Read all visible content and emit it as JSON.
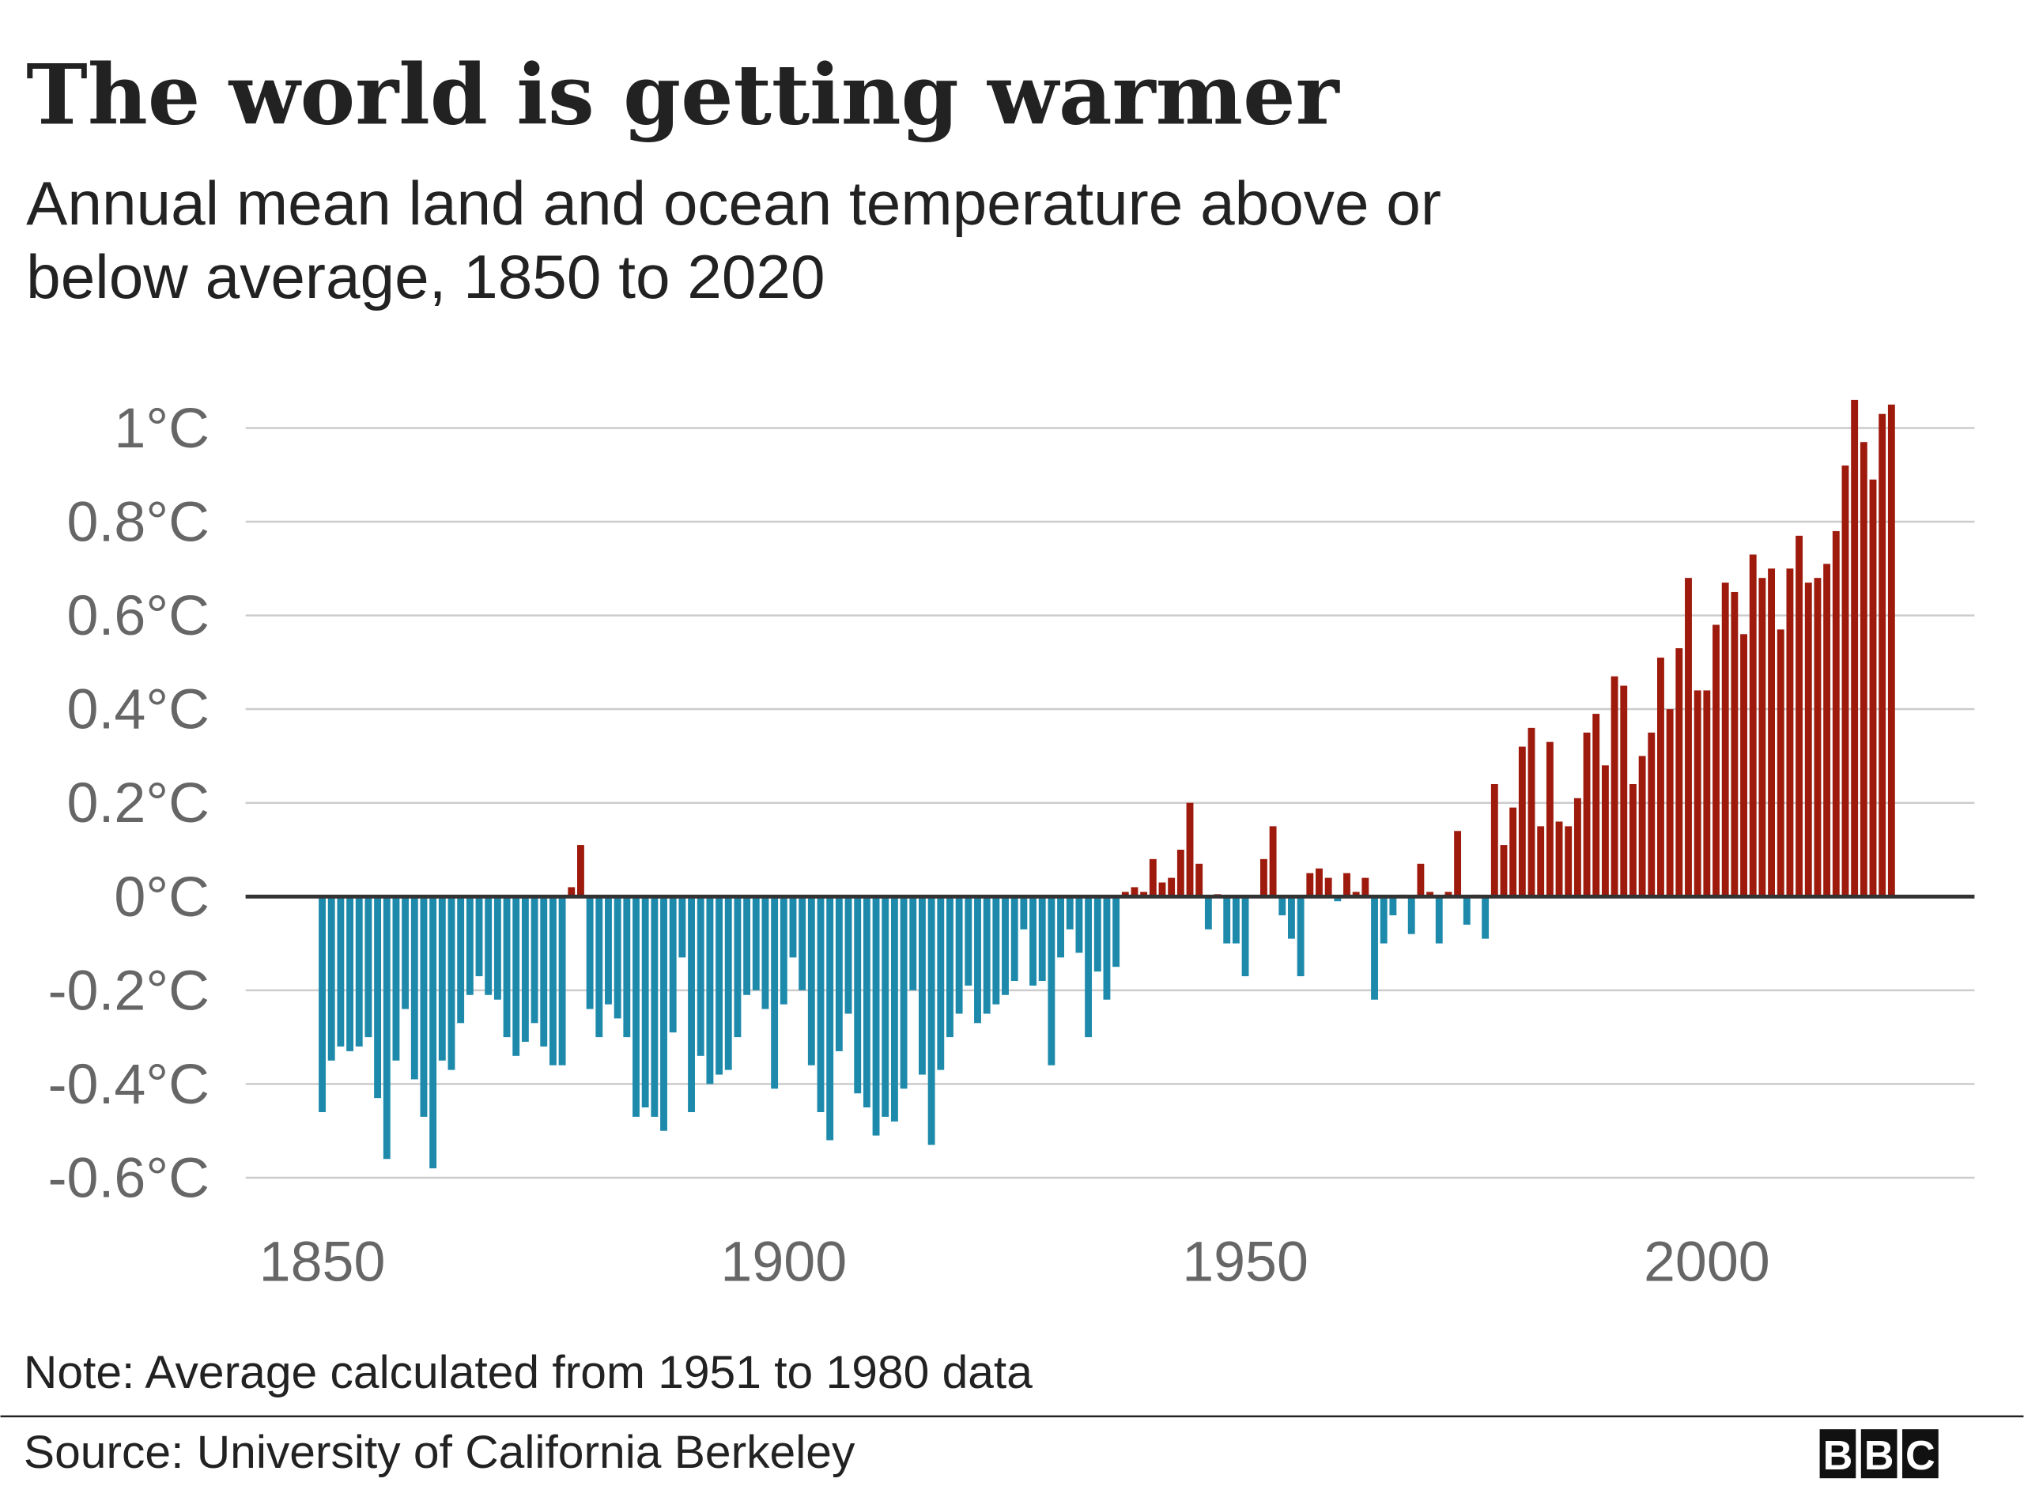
{
  "chart_data": {
    "type": "bar",
    "title": "The world is getting warmer",
    "subtitle": [
      "Annual mean land and ocean temperature above or",
      "below average, 1850 to 2020"
    ],
    "note": "Note: Average calculated from 1951 to 1980 data",
    "source": "Source: University of California Berkeley",
    "logo": [
      "B",
      "B",
      "C"
    ],
    "positive_color": "#9e1a0c",
    "negative_color": "#1d8aac",
    "grid": true,
    "xlim": [
      1841.7,
      2029
    ],
    "xticks": [
      1850,
      1900,
      1950,
      2000
    ],
    "ylim": [
      -0.6,
      1.06
    ],
    "yticks": [
      {
        "value": -0.6,
        "label": "-0.6°C"
      },
      {
        "value": -0.4,
        "label": "-0.4°C"
      },
      {
        "value": -0.2,
        "label": "-0.2°C"
      },
      {
        "value": 0,
        "label": "0°C"
      },
      {
        "value": 0.2,
        "label": "0.2°C"
      },
      {
        "value": 0.4,
        "label": "0.4°C"
      },
      {
        "value": 0.6,
        "label": "0.6°C"
      },
      {
        "value": 0.8,
        "label": "0.8°C"
      },
      {
        "value": 1,
        "label": "1°C"
      }
    ],
    "x": [
      1850,
      1851,
      1852,
      1853,
      1854,
      1855,
      1856,
      1857,
      1858,
      1859,
      1860,
      1861,
      1862,
      1863,
      1864,
      1865,
      1866,
      1867,
      1868,
      1869,
      1870,
      1871,
      1872,
      1873,
      1874,
      1875,
      1876,
      1877,
      1878,
      1879,
      1880,
      1881,
      1882,
      1883,
      1884,
      1885,
      1886,
      1887,
      1888,
      1889,
      1890,
      1891,
      1892,
      1893,
      1894,
      1895,
      1896,
      1897,
      1898,
      1899,
      1900,
      1901,
      1902,
      1903,
      1904,
      1905,
      1906,
      1907,
      1908,
      1909,
      1910,
      1911,
      1912,
      1913,
      1914,
      1915,
      1916,
      1917,
      1918,
      1919,
      1920,
      1921,
      1922,
      1923,
      1924,
      1925,
      1926,
      1927,
      1928,
      1929,
      1930,
      1931,
      1932,
      1933,
      1934,
      1935,
      1936,
      1937,
      1938,
      1939,
      1940,
      1941,
      1942,
      1943,
      1944,
      1945,
      1946,
      1947,
      1948,
      1949,
      1950,
      1951,
      1952,
      1953,
      1954,
      1955,
      1956,
      1957,
      1958,
      1959,
      1960,
      1961,
      1962,
      1963,
      1964,
      1965,
      1966,
      1967,
      1968,
      1969,
      1970,
      1971,
      1972,
      1973,
      1974,
      1975,
      1976,
      1977,
      1978,
      1979,
      1980,
      1981,
      1982,
      1983,
      1984,
      1985,
      1986,
      1987,
      1988,
      1989,
      1990,
      1991,
      1992,
      1993,
      1994,
      1995,
      1996,
      1997,
      1998,
      1999,
      2000,
      2001,
      2002,
      2003,
      2004,
      2005,
      2006,
      2007,
      2008,
      2009,
      2010,
      2011,
      2012,
      2013,
      2014,
      2015,
      2016,
      2017,
      2018,
      2019,
      2020
    ],
    "values": [
      -0.46,
      -0.35,
      -0.32,
      -0.33,
      -0.32,
      -0.3,
      -0.43,
      -0.56,
      -0.35,
      -0.24,
      -0.39,
      -0.47,
      -0.58,
      -0.35,
      -0.37,
      -0.27,
      -0.21,
      -0.17,
      -0.21,
      -0.22,
      -0.3,
      -0.34,
      -0.31,
      -0.27,
      -0.32,
      -0.36,
      -0.36,
      0.02,
      0.11,
      -0.24,
      -0.3,
      -0.23,
      -0.26,
      -0.3,
      -0.47,
      -0.45,
      -0.47,
      -0.5,
      -0.29,
      -0.13,
      -0.46,
      -0.34,
      -0.4,
      -0.38,
      -0.37,
      -0.3,
      -0.21,
      -0.2,
      -0.24,
      -0.41,
      -0.23,
      -0.13,
      -0.2,
      -0.36,
      -0.46,
      -0.52,
      -0.33,
      -0.25,
      -0.42,
      -0.45,
      -0.51,
      -0.47,
      -0.48,
      -0.41,
      -0.2,
      -0.38,
      -0.53,
      -0.37,
      -0.3,
      -0.25,
      -0.19,
      -0.27,
      -0.25,
      -0.23,
      -0.21,
      -0.18,
      -0.07,
      -0.19,
      -0.18,
      -0.36,
      -0.13,
      -0.07,
      -0.12,
      -0.3,
      -0.16,
      -0.22,
      -0.15,
      0.01,
      0.02,
      0.01,
      0.08,
      0.03,
      0.04,
      0.1,
      0.2,
      0.07,
      -0.07,
      0.005,
      -0.1,
      -0.1,
      -0.17,
      0.003,
      0.08,
      0.15,
      -0.04,
      -0.09,
      -0.17,
      0.05,
      0.06,
      0.04,
      -0.01,
      0.05,
      0.01,
      0.04,
      -0.22,
      -0.1,
      -0.04,
      0.004,
      -0.08,
      0.07,
      0.01,
      -0.1,
      0.01,
      0.14,
      -0.06,
      0.004,
      -0.09,
      0.24,
      0.11,
      0.19,
      0.32,
      0.36,
      0.15,
      0.33,
      0.16,
      0.15,
      0.21,
      0.35,
      0.39,
      0.28,
      0.47,
      0.45,
      0.24,
      0.3,
      0.35,
      0.51,
      0.4,
      0.53,
      0.68,
      0.44,
      0.44,
      0.58,
      0.67,
      0.65,
      0.56,
      0.73,
      0.68,
      0.7,
      0.57,
      0.7,
      0.77,
      0.67,
      0.68,
      0.71,
      0.78,
      0.92,
      1.06,
      0.97,
      0.89,
      1.03,
      1.05
    ]
  }
}
